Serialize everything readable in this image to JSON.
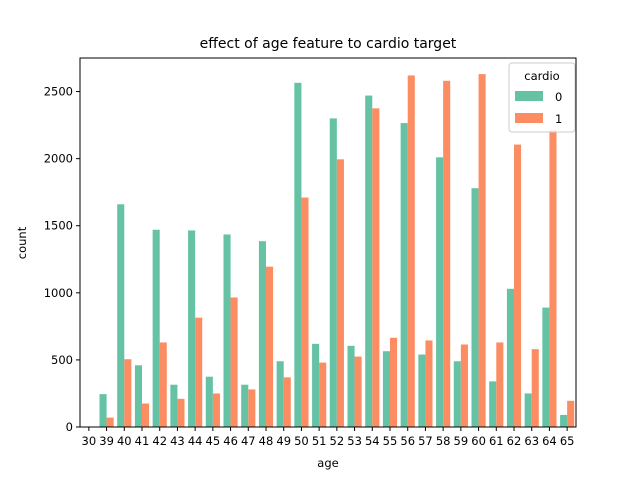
{
  "chart_data": {
    "type": "bar",
    "title": "effect of age feature to cardio target",
    "xlabel": "age",
    "ylabel": "count",
    "ylim": [
      0,
      2750
    ],
    "yticks": [
      0,
      500,
      1000,
      1500,
      2000,
      2500
    ],
    "categories": [
      "30",
      "39",
      "40",
      "41",
      "42",
      "43",
      "44",
      "45",
      "46",
      "47",
      "48",
      "49",
      "50",
      "51",
      "52",
      "53",
      "54",
      "55",
      "56",
      "57",
      "58",
      "59",
      "60",
      "61",
      "62",
      "63",
      "64",
      "65"
    ],
    "legend": {
      "title": "cardio",
      "placement": "top-right"
    },
    "series": [
      {
        "name": "0",
        "color": "#66c2a5",
        "values": [
          3,
          245,
          1660,
          460,
          1470,
          315,
          1465,
          375,
          1435,
          315,
          1385,
          490,
          2565,
          620,
          2300,
          605,
          2470,
          565,
          2265,
          540,
          2010,
          490,
          1780,
          340,
          1030,
          250,
          890,
          90
        ]
      },
      {
        "name": "1",
        "color": "#fc8d62",
        "values": [
          1,
          70,
          505,
          175,
          630,
          210,
          815,
          250,
          965,
          280,
          1195,
          370,
          1710,
          480,
          1995,
          525,
          2375,
          665,
          2620,
          645,
          2580,
          615,
          2630,
          630,
          2105,
          580,
          2210,
          195
        ]
      }
    ]
  }
}
